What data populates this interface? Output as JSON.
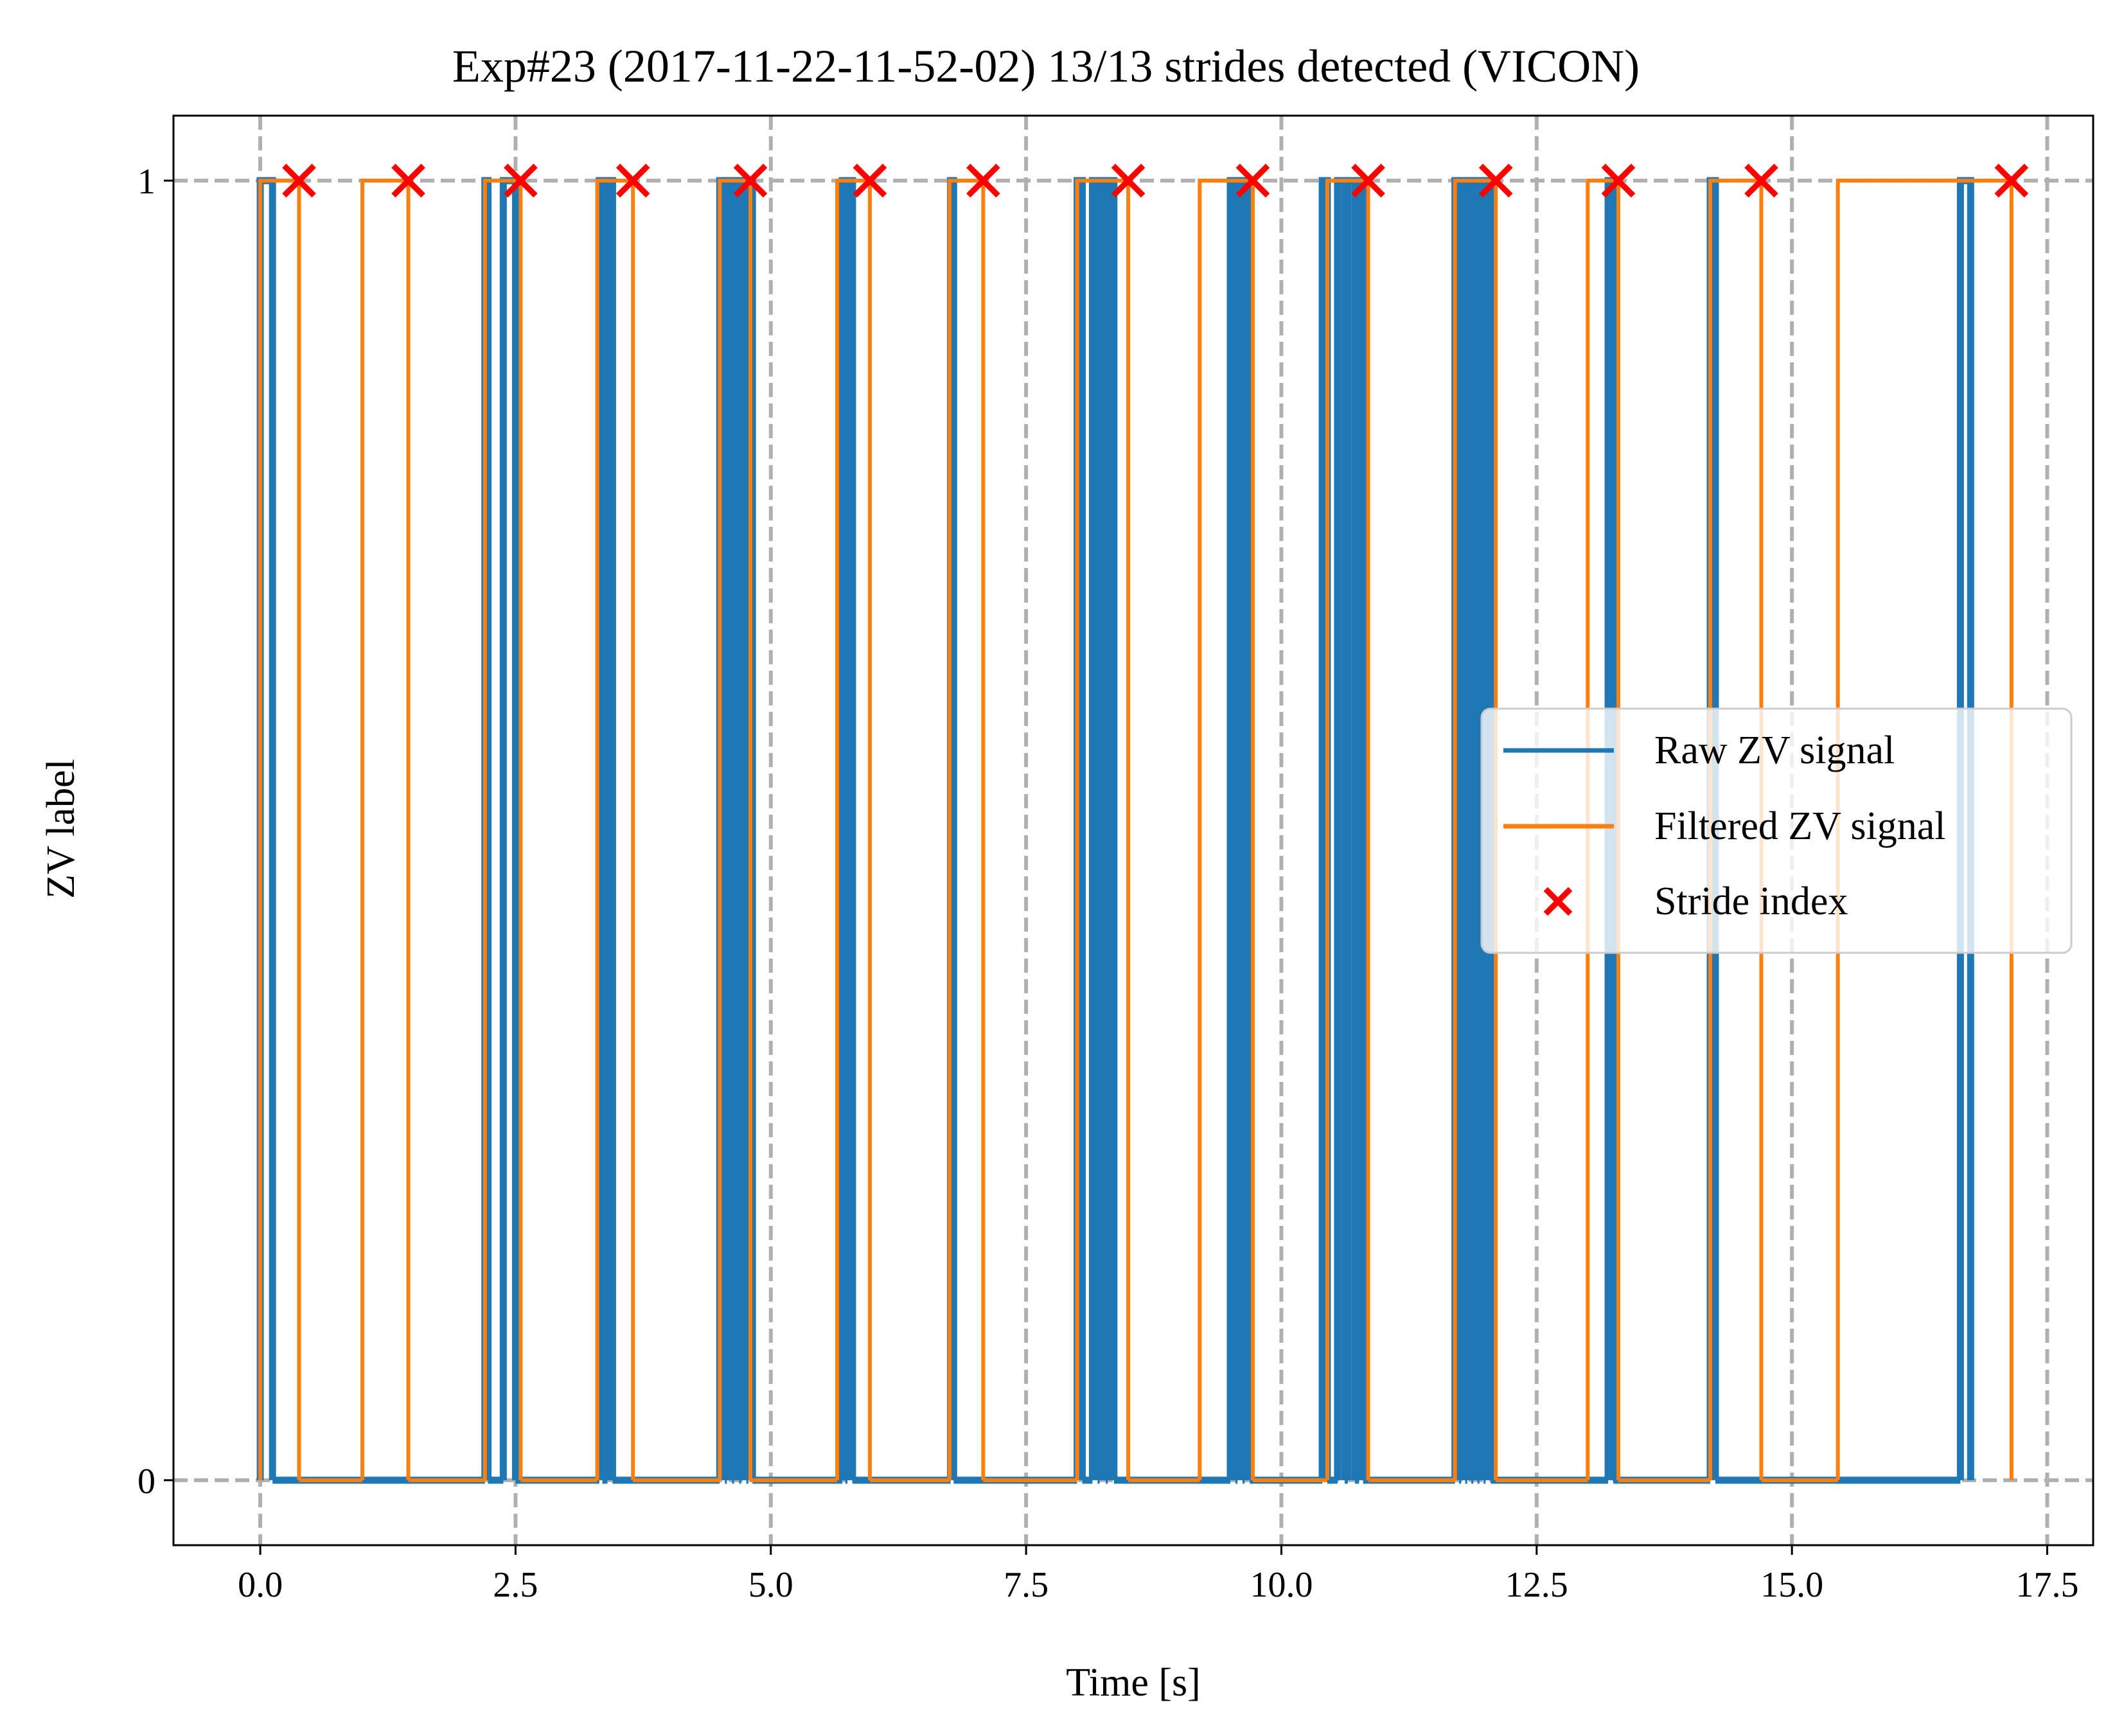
{
  "chart_data": {
    "type": "line",
    "title": "Exp#23 (2017-11-22-11-52-02) 13/13 strides detected (VICON)",
    "xlabel": "Time [s]",
    "ylabel": "ZV label",
    "xlim": [
      -0.85,
      17.95
    ],
    "ylim": [
      -0.05,
      1.05
    ],
    "xticks": [
      0.0,
      2.5,
      5.0,
      7.5,
      10.0,
      12.5,
      15.0,
      17.5
    ],
    "xtick_labels": [
      "0.0",
      "2.5",
      "5.0",
      "7.5",
      "10.0",
      "12.5",
      "15.0",
      "17.5"
    ],
    "yticks": [
      0,
      1
    ],
    "ytick_labels": [
      "0",
      "1"
    ],
    "grid": true,
    "grid_style": "dashed",
    "legend_position": "center-right",
    "colors": {
      "raw": "#1f77b4",
      "filtered": "#ff7f0e",
      "stride": "#ff0000",
      "grid": "#b0b0b0"
    },
    "series": [
      {
        "name": "Raw ZV signal",
        "kind": "step",
        "high_intervals": [
          [
            0.0,
            0.12
          ],
          [
            2.2,
            2.23
          ],
          [
            2.38,
            2.5
          ],
          [
            3.32,
            3.35
          ],
          [
            3.4,
            3.45
          ],
          [
            4.5,
            4.55
          ],
          [
            4.57,
            4.62
          ],
          [
            4.64,
            4.69
          ],
          [
            4.71,
            4.76
          ],
          [
            4.78,
            4.82
          ],
          [
            5.7,
            5.73
          ],
          [
            5.75,
            5.8
          ],
          [
            6.76,
            6.79
          ],
          [
            8.0,
            8.05
          ],
          [
            8.15,
            8.2
          ],
          [
            8.22,
            8.28
          ],
          [
            8.3,
            8.36
          ],
          [
            9.5,
            9.55
          ],
          [
            9.57,
            9.62
          ],
          [
            9.64,
            9.69
          ],
          [
            10.4,
            10.45
          ],
          [
            10.55,
            10.62
          ],
          [
            10.65,
            10.72
          ],
          [
            10.76,
            10.8
          ],
          [
            11.7,
            11.74
          ],
          [
            11.76,
            11.8
          ],
          [
            11.82,
            11.86
          ],
          [
            11.88,
            11.92
          ],
          [
            11.94,
            11.98
          ],
          [
            12.0,
            12.05
          ],
          [
            13.2,
            13.25
          ],
          [
            14.2,
            14.25
          ],
          [
            16.65,
            16.75
          ]
        ]
      },
      {
        "name": "Filtered ZV signal",
        "kind": "step",
        "high_intervals": [
          [
            0.0,
            0.38
          ],
          [
            1.0,
            1.45
          ],
          [
            2.2,
            2.55
          ],
          [
            3.3,
            3.65
          ],
          [
            4.5,
            4.8
          ],
          [
            5.65,
            5.97
          ],
          [
            6.75,
            7.08
          ],
          [
            8.0,
            8.5
          ],
          [
            9.2,
            9.72
          ],
          [
            10.45,
            10.85
          ],
          [
            11.7,
            12.1
          ],
          [
            13.0,
            13.3
          ],
          [
            14.2,
            14.7
          ],
          [
            15.45,
            17.15
          ]
        ]
      }
    ],
    "stride_index": {
      "name": "Stride index",
      "x": [
        0.38,
        1.45,
        2.55,
        3.65,
        4.8,
        5.97,
        7.08,
        8.5,
        9.72,
        10.85,
        12.1,
        13.3,
        14.7,
        17.15
      ],
      "y": [
        1,
        1,
        1,
        1,
        1,
        1,
        1,
        1,
        1,
        1,
        1,
        1,
        1,
        1
      ]
    }
  }
}
